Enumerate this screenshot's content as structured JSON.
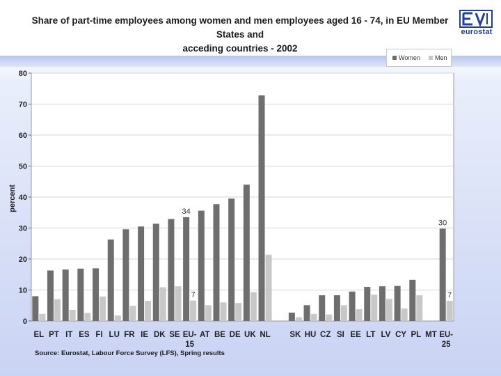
{
  "title_line1": "Share of part-time employees among women and men employees aged 16 - 74, in EU Member States and",
  "title_line2": "acceding countries - 2002",
  "logo_text": "eurostat",
  "source": "Source: Eurostat, Labour Force Survey (LFS), Spring results",
  "colors": {
    "women": "#6e6e6e",
    "men": "#c8c8c8"
  },
  "chart_data": {
    "type": "bar",
    "title": "Share of part-time employees among women and men employees aged 16 - 74, in EU Member States and acceding countries - 2002",
    "ylabel": "percent",
    "xlabel": "",
    "ylim": [
      0,
      80
    ],
    "yticks": [
      0,
      10,
      20,
      30,
      40,
      50,
      60,
      70,
      80
    ],
    "legend": "top-right",
    "categories": [
      "EL",
      "PT",
      "IT",
      "ES",
      "FI",
      "LU",
      "FR",
      "IE",
      "DK",
      "SE",
      "EU-15",
      "AT",
      "BE",
      "DE",
      "UK",
      "NL",
      "",
      "SK",
      "HU",
      "CZ",
      "SI",
      "EE",
      "LT",
      "LV",
      "CY",
      "PL",
      "MT",
      "EU-25"
    ],
    "series": [
      {
        "name": "Women",
        "values": [
          8,
          16.3,
          16.6,
          16.9,
          17,
          26.3,
          29.6,
          30.5,
          31.4,
          32.9,
          33.5,
          35.6,
          37.7,
          39.5,
          44,
          72.8,
          null,
          2.7,
          5.1,
          8.3,
          8.3,
          9.5,
          11,
          11.2,
          11.3,
          13.3,
          null,
          29.8
        ]
      },
      {
        "name": "Men",
        "values": [
          2.3,
          7,
          3.6,
          2.6,
          7.9,
          1.8,
          4.9,
          6.5,
          10.9,
          11.2,
          6.6,
          5.1,
          6,
          5.8,
          9.3,
          21.4,
          null,
          1.2,
          2.3,
          2.1,
          5.1,
          3.8,
          8.5,
          7.1,
          4,
          8.3,
          null,
          6.5
        ]
      }
    ],
    "annotations": [
      {
        "category": "EU-15",
        "series": "Women",
        "label": "34"
      },
      {
        "category": "EU-15",
        "series": "Men",
        "label": "7"
      },
      {
        "category": "EU-25",
        "series": "Women",
        "label": "30"
      },
      {
        "category": "EU-25",
        "series": "Men",
        "label": "7"
      }
    ]
  }
}
